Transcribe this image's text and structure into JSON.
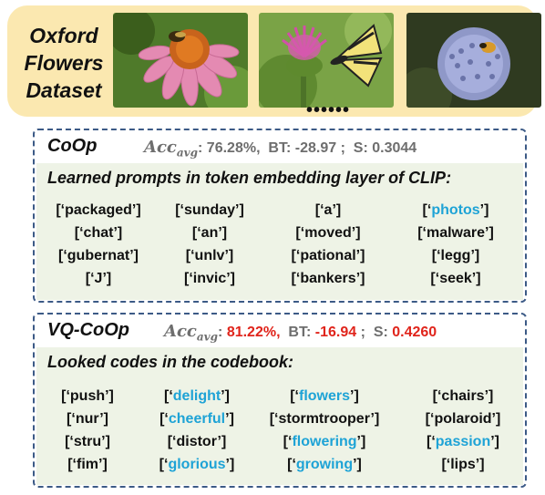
{
  "dataset": {
    "title_lines": [
      "Oxford",
      "Flowers",
      "Dataset"
    ],
    "ellipsis": "••••••"
  },
  "coop": {
    "method": "CoOp",
    "acc_label": "Acc",
    "acc_sub": "avg",
    "acc_value": ": 76.28%,",
    "bt_label": "BT:",
    "bt_value": "-28.97 ;",
    "s_label": "S:",
    "s_value": "0.3044",
    "section_title": "Learned prompts in token embedding layer of CLIP:",
    "columns": [
      [
        {
          "t": "packaged",
          "hl": false
        },
        {
          "t": "chat",
          "hl": false
        },
        {
          "t": "gubernat",
          "hl": false
        },
        {
          "t": "J",
          "hl": false
        }
      ],
      [
        {
          "t": "sunday",
          "hl": false
        },
        {
          "t": "an",
          "hl": false
        },
        {
          "t": "unlv",
          "hl": false
        },
        {
          "t": "invic",
          "hl": false
        }
      ],
      [
        {
          "t": "a",
          "hl": false
        },
        {
          "t": "moved",
          "hl": false
        },
        {
          "t": "pational",
          "hl": false
        },
        {
          "t": "bankers",
          "hl": false
        }
      ],
      [
        {
          "t": "photos",
          "hl": true
        },
        {
          "t": "malware",
          "hl": false
        },
        {
          "t": "legg",
          "hl": false
        },
        {
          "t": "seek",
          "hl": false
        }
      ]
    ]
  },
  "vqcoop": {
    "method": "VQ-CoOp",
    "acc_label": "Acc",
    "acc_sub": "avg",
    "acc_value": "81.22%,",
    "bt_label": "BT:",
    "bt_value": "-16.94",
    "s_label": "S:",
    "s_value": "0.4260",
    "section_title": "Looked codes in the codebook:",
    "columns": [
      [
        {
          "t": "push",
          "hl": false
        },
        {
          "t": "nur",
          "hl": false
        },
        {
          "t": "stru",
          "hl": false
        },
        {
          "t": "fim",
          "hl": false
        }
      ],
      [
        {
          "t": "delight",
          "hl": true
        },
        {
          "t": "cheerful",
          "hl": true
        },
        {
          "t": "distor",
          "hl": false
        },
        {
          "t": "glorious",
          "hl": true
        }
      ],
      [
        {
          "t": "flowers",
          "hl": true
        },
        {
          "t": "stormtrooper",
          "hl": false
        },
        {
          "t": "flowering",
          "hl": true
        },
        {
          "t": "growing",
          "hl": true
        }
      ],
      [
        {
          "t": "chairs",
          "hl": false
        },
        {
          "t": "polaroid",
          "hl": false
        },
        {
          "t": "passion",
          "hl": true
        },
        {
          "t": "lips",
          "hl": false
        }
      ]
    ]
  }
}
